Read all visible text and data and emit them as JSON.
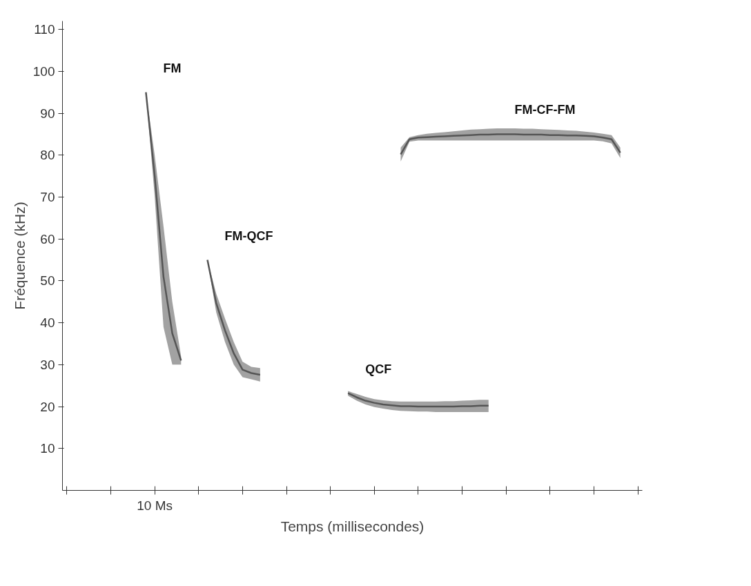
{
  "chart_data": {
    "type": "line",
    "xlabel": "Temps (millisecondes)",
    "ylabel": "Fréquence (kHz)",
    "categories": [
      null,
      null,
      null,
      null,
      null,
      null,
      null,
      null,
      null,
      null,
      "10 Ms",
      null,
      null,
      null,
      null,
      null,
      null,
      null,
      null,
      null,
      null,
      null,
      null,
      null,
      null,
      null,
      null,
      null,
      null,
      null,
      null,
      null,
      null,
      null,
      null,
      null,
      null,
      null,
      null,
      null,
      null,
      null,
      null,
      null,
      null,
      null,
      null,
      null,
      null,
      null,
      null,
      null,
      null,
      null,
      null,
      null,
      null,
      null,
      null,
      null,
      null,
      null,
      null,
      null,
      null,
      null
    ],
    "ylim": [
      0,
      112
    ],
    "yticks": [
      10,
      20,
      30,
      40,
      50,
      60,
      70,
      80,
      90,
      100,
      110
    ],
    "grid": false,
    "legend": false,
    "marker": "none",
    "series": [
      {
        "name": "FM",
        "color": "#555555",
        "values": [
          null,
          null,
          null,
          null,
          null,
          null,
          null,
          null,
          null,
          95,
          75,
          51,
          37.5,
          31,
          null,
          null,
          null,
          null,
          null,
          null,
          null,
          null,
          null,
          null,
          null,
          null,
          null,
          null,
          null,
          null,
          null,
          null,
          null,
          null,
          null,
          null,
          null,
          null,
          null,
          null,
          null,
          null,
          null,
          null,
          null,
          null,
          null,
          null,
          null,
          null,
          null,
          null,
          null,
          null,
          null,
          null,
          null,
          null,
          null,
          null,
          null,
          null,
          null,
          null,
          null,
          null
        ],
        "lower": [
          null,
          null,
          null,
          null,
          null,
          null,
          null,
          null,
          null,
          95,
          70,
          39,
          30,
          30,
          null,
          null,
          null,
          null,
          null,
          null,
          null,
          null,
          null,
          null,
          null,
          null,
          null,
          null,
          null,
          null,
          null,
          null,
          null,
          null,
          null,
          null,
          null,
          null,
          null,
          null,
          null,
          null,
          null,
          null,
          null,
          null,
          null,
          null,
          null,
          null,
          null,
          null,
          null,
          null,
          null,
          null,
          null,
          null,
          null,
          null,
          null,
          null,
          null,
          null,
          null,
          null
        ],
        "upper": [
          null,
          null,
          null,
          null,
          null,
          null,
          null,
          null,
          null,
          95,
          80,
          63,
          45,
          32,
          null,
          null,
          null,
          null,
          null,
          null,
          null,
          null,
          null,
          null,
          null,
          null,
          null,
          null,
          null,
          null,
          null,
          null,
          null,
          null,
          null,
          null,
          null,
          null,
          null,
          null,
          null,
          null,
          null,
          null,
          null,
          null,
          null,
          null,
          null,
          null,
          null,
          null,
          null,
          null,
          null,
          null,
          null,
          null,
          null,
          null,
          null,
          null,
          null,
          null,
          null,
          null
        ]
      },
      {
        "name": "FM-QCF",
        "color": "#555555",
        "values": [
          null,
          null,
          null,
          null,
          null,
          null,
          null,
          null,
          null,
          null,
          null,
          null,
          null,
          null,
          null,
          null,
          55,
          44.7,
          38.2,
          32.7,
          28.8,
          28,
          27.6,
          null,
          null,
          null,
          null,
          null,
          null,
          null,
          null,
          null,
          null,
          null,
          null,
          null,
          null,
          null,
          null,
          null,
          null,
          null,
          null,
          null,
          null,
          null,
          null,
          null,
          null,
          null,
          null,
          null,
          null,
          null,
          null,
          null,
          null,
          null,
          null,
          null,
          null,
          null,
          null,
          null,
          null,
          null
        ],
        "lower": [
          null,
          null,
          null,
          null,
          null,
          null,
          null,
          null,
          null,
          null,
          null,
          null,
          null,
          null,
          null,
          null,
          55,
          42.5,
          35.4,
          30,
          27,
          26.5,
          26,
          null,
          null,
          null,
          null,
          null,
          null,
          null,
          null,
          null,
          null,
          null,
          null,
          null,
          null,
          null,
          null,
          null,
          null,
          null,
          null,
          null,
          null,
          null,
          null,
          null,
          null,
          null,
          null,
          null,
          null,
          null,
          null,
          null,
          null,
          null,
          null,
          null,
          null,
          null,
          null,
          null,
          null,
          null
        ],
        "upper": [
          null,
          null,
          null,
          null,
          null,
          null,
          null,
          null,
          null,
          null,
          null,
          null,
          null,
          null,
          null,
          null,
          55,
          47,
          41,
          35.4,
          30.7,
          29.5,
          29.2,
          null,
          null,
          null,
          null,
          null,
          null,
          null,
          null,
          null,
          null,
          null,
          null,
          null,
          null,
          null,
          null,
          null,
          null,
          null,
          null,
          null,
          null,
          null,
          null,
          null,
          null,
          null,
          null,
          null,
          null,
          null,
          null,
          null,
          null,
          null,
          null,
          null,
          null,
          null,
          null,
          null,
          null,
          null
        ]
      },
      {
        "name": "QCF",
        "color": "#555555",
        "values": [
          null,
          null,
          null,
          null,
          null,
          null,
          null,
          null,
          null,
          null,
          null,
          null,
          null,
          null,
          null,
          null,
          null,
          null,
          null,
          null,
          null,
          null,
          null,
          null,
          null,
          null,
          null,
          null,
          null,
          null,
          null,
          null,
          23.2,
          22.2,
          21.4,
          20.9,
          20.5,
          20.3,
          20.1,
          20.1,
          20,
          20,
          20,
          20,
          20,
          20.1,
          20.1,
          20.2,
          20.2,
          null,
          null,
          null,
          null,
          null,
          null,
          null,
          null,
          null,
          null,
          null,
          null,
          null,
          null,
          null,
          null,
          null
        ],
        "lower": [
          null,
          null,
          null,
          null,
          null,
          null,
          null,
          null,
          null,
          null,
          null,
          null,
          null,
          null,
          null,
          null,
          null,
          null,
          null,
          null,
          null,
          null,
          null,
          null,
          null,
          null,
          null,
          null,
          null,
          null,
          null,
          null,
          22.6,
          21.4,
          20.5,
          19.9,
          19.5,
          19.2,
          19,
          18.9,
          18.8,
          18.8,
          18.7,
          18.7,
          18.7,
          18.7,
          18.7,
          18.7,
          18.7,
          null,
          null,
          null,
          null,
          null,
          null,
          null,
          null,
          null,
          null,
          null,
          null,
          null,
          null,
          null,
          null,
          null
        ],
        "upper": [
          null,
          null,
          null,
          null,
          null,
          null,
          null,
          null,
          null,
          null,
          null,
          null,
          null,
          null,
          null,
          null,
          null,
          null,
          null,
          null,
          null,
          null,
          null,
          null,
          null,
          null,
          null,
          null,
          null,
          null,
          null,
          null,
          23.7,
          23,
          22.3,
          21.8,
          21.5,
          21.3,
          21.2,
          21.2,
          21.2,
          21.2,
          21.2,
          21.3,
          21.3,
          21.4,
          21.5,
          21.6,
          21.6,
          null,
          null,
          null,
          null,
          null,
          null,
          null,
          null,
          null,
          null,
          null,
          null,
          null,
          null,
          null,
          null,
          null
        ]
      },
      {
        "name": "FM-CF-FM",
        "color": "#555555",
        "values": [
          null,
          null,
          null,
          null,
          null,
          null,
          null,
          null,
          null,
          null,
          null,
          null,
          null,
          null,
          null,
          null,
          null,
          null,
          null,
          null,
          null,
          null,
          null,
          null,
          null,
          null,
          null,
          null,
          null,
          null,
          null,
          null,
          null,
          null,
          null,
          null,
          null,
          null,
          80.2,
          83.8,
          84.2,
          84.3,
          84.4,
          84.5,
          84.6,
          84.7,
          84.8,
          84.9,
          84.9,
          85,
          85,
          85,
          84.9,
          84.9,
          84.9,
          84.8,
          84.8,
          84.7,
          84.7,
          84.6,
          84.5,
          84.2,
          83.8,
          80.6,
          null,
          null
        ],
        "lower": [
          null,
          null,
          null,
          null,
          null,
          null,
          null,
          null,
          null,
          null,
          null,
          null,
          null,
          null,
          null,
          null,
          null,
          null,
          null,
          null,
          null,
          null,
          null,
          null,
          null,
          null,
          null,
          null,
          null,
          null,
          null,
          null,
          null,
          null,
          null,
          null,
          null,
          null,
          78.5,
          83.2,
          83.5,
          83.5,
          83.5,
          83.5,
          83.5,
          83.5,
          83.5,
          83.5,
          83.5,
          83.5,
          83.5,
          83.5,
          83.5,
          83.5,
          83.5,
          83.5,
          83.5,
          83.5,
          83.5,
          83.5,
          83.5,
          83.3,
          82.8,
          79.3,
          null,
          null
        ],
        "upper": [
          null,
          null,
          null,
          null,
          null,
          null,
          null,
          null,
          null,
          null,
          null,
          null,
          null,
          null,
          null,
          null,
          null,
          null,
          null,
          null,
          null,
          null,
          null,
          null,
          null,
          null,
          null,
          null,
          null,
          null,
          null,
          null,
          null,
          null,
          null,
          null,
          null,
          null,
          81.8,
          84.3,
          84.8,
          85.1,
          85.3,
          85.5,
          85.7,
          85.9,
          86.1,
          86.2,
          86.3,
          86.4,
          86.4,
          86.4,
          86.3,
          86.3,
          86.2,
          86.1,
          86,
          85.9,
          85.8,
          85.6,
          85.4,
          85.1,
          84.8,
          81.8,
          null,
          null
        ]
      }
    ]
  }
}
